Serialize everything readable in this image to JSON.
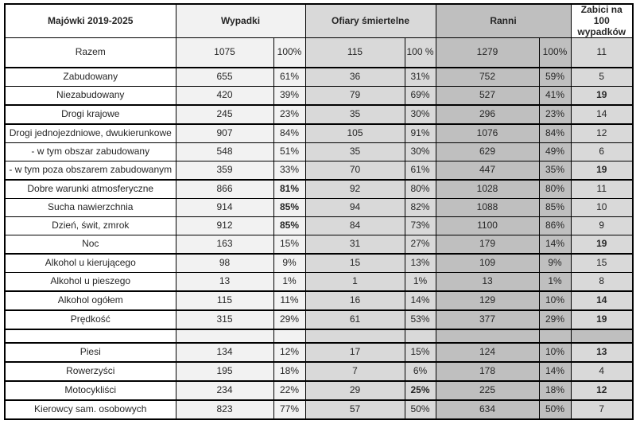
{
  "colors": {
    "wypadki_bg": "#f2f2f2",
    "ofiary_bg": "#d9d9d9",
    "ranni_bg": "#bfbfbf",
    "zabici_bg": "#d9d9d9",
    "border": "#000000",
    "text": "#262626"
  },
  "table": {
    "header": {
      "title": "Majówki 2019-2025",
      "groups": [
        "Wypadki",
        "Ofiary śmiertelne",
        "Ranni",
        "Zabici na 100 wypadków"
      ]
    },
    "rows": [
      {
        "label": "Razem",
        "cells": [
          "1075",
          "100%",
          "115",
          "100 %",
          "1279",
          "100%",
          "11"
        ],
        "bold": [],
        "thick_bottom": true,
        "tall": true
      },
      {
        "label": "Zabudowany",
        "cells": [
          "655",
          "61%",
          "36",
          "31%",
          "752",
          "59%",
          "5"
        ],
        "bold": [],
        "thick_bottom": false
      },
      {
        "label": "Niezabudowany",
        "cells": [
          "420",
          "39%",
          "79",
          "69%",
          "527",
          "41%",
          "19"
        ],
        "bold": [
          6
        ],
        "thick_bottom": true
      },
      {
        "label": "Drogi krajowe",
        "cells": [
          "245",
          "23%",
          "35",
          "30%",
          "296",
          "23%",
          "14"
        ],
        "bold": [],
        "thick_bottom": true
      },
      {
        "label": "Drogi jednojezdniowe, dwukierunkowe",
        "cells": [
          "907",
          "84%",
          "105",
          "91%",
          "1076",
          "84%",
          "12"
        ],
        "bold": [],
        "thick_bottom": false
      },
      {
        "label": "- w tym obszar zabudowany",
        "cells": [
          "548",
          "51%",
          "35",
          "30%",
          "629",
          "49%",
          "6"
        ],
        "bold": [],
        "thick_bottom": false
      },
      {
        "label": "- w tym poza obszarem zabudowanym",
        "cells": [
          "359",
          "33%",
          "70",
          "61%",
          "447",
          "35%",
          "19"
        ],
        "bold": [
          6
        ],
        "thick_bottom": true
      },
      {
        "label": "Dobre warunki atmosferyczne",
        "cells": [
          "866",
          "81%",
          "92",
          "80%",
          "1028",
          "80%",
          "11"
        ],
        "bold": [
          1
        ],
        "thick_bottom": false
      },
      {
        "label": "Sucha nawierzchnia",
        "cells": [
          "914",
          "85%",
          "94",
          "82%",
          "1088",
          "85%",
          "10"
        ],
        "bold": [
          1
        ],
        "thick_bottom": false
      },
      {
        "label": "Dzień, świt, zmrok",
        "cells": [
          "912",
          "85%",
          "84",
          "73%",
          "1100",
          "86%",
          "9"
        ],
        "bold": [
          1
        ],
        "thick_bottom": false
      },
      {
        "label": "Noc",
        "cells": [
          "163",
          "15%",
          "31",
          "27%",
          "179",
          "14%",
          "19"
        ],
        "bold": [
          6
        ],
        "thick_bottom": true
      },
      {
        "label": "Alkohol u kierującego",
        "cells": [
          "98",
          "9%",
          "15",
          "13%",
          "109",
          "9%",
          "15"
        ],
        "bold": [],
        "thick_bottom": false
      },
      {
        "label": "Alkohol u pieszego",
        "cells": [
          "13",
          "1%",
          "1",
          "1%",
          "13",
          "1%",
          "8"
        ],
        "bold": [],
        "thick_bottom": true
      },
      {
        "label": "Alkohol ogółem",
        "cells": [
          "115",
          "11%",
          "16",
          "14%",
          "129",
          "10%",
          "14"
        ],
        "bold": [
          6
        ],
        "thick_bottom": true
      },
      {
        "label": "Prędkość",
        "cells": [
          "315",
          "29%",
          "61",
          "53%",
          "377",
          "29%",
          "19"
        ],
        "bold": [
          6
        ],
        "thick_bottom": true
      },
      {
        "label": "",
        "cells": [
          "",
          "",
          "",
          "",
          "",
          "",
          ""
        ],
        "bold": [],
        "thick_bottom": true,
        "empty": true
      },
      {
        "label": "Piesi",
        "cells": [
          "134",
          "12%",
          "17",
          "15%",
          "124",
          "10%",
          "13"
        ],
        "bold": [
          6
        ],
        "thick_bottom": true
      },
      {
        "label": "Rowerzyści",
        "cells": [
          "195",
          "18%",
          "7",
          "6%",
          "178",
          "14%",
          "4"
        ],
        "bold": [],
        "thick_bottom": true
      },
      {
        "label": "Motocykliści",
        "cells": [
          "234",
          "22%",
          "29",
          "25%",
          "225",
          "18%",
          "12"
        ],
        "bold": [
          3,
          6
        ],
        "thick_bottom": true
      },
      {
        "label": "Kierowcy sam. osobowych",
        "cells": [
          "823",
          "77%",
          "57",
          "50%",
          "634",
          "50%",
          "7"
        ],
        "bold": [],
        "thick_bottom": false
      }
    ]
  }
}
